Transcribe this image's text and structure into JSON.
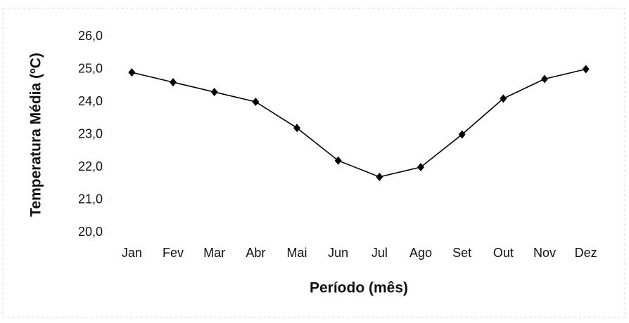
{
  "chart_data": {
    "type": "line",
    "y_label": "Temperatura Média (ºC)",
    "x_label": "Período (mês)",
    "categories": [
      "Jan",
      "Fev",
      "Mar",
      "Abr",
      "Mai",
      "Jun",
      "Jul",
      "Ago",
      "Set",
      "Out",
      "Nov",
      "Dez"
    ],
    "values": [
      24.9,
      24.6,
      24.3,
      24.0,
      23.2,
      22.2,
      21.7,
      22.0,
      23.0,
      24.1,
      24.7,
      25.0
    ],
    "color": "#000000",
    "ylim": [
      20,
      26
    ],
    "yticks": [
      {
        "value": 20,
        "label": "20,0"
      },
      {
        "value": 21,
        "label": "21,0"
      },
      {
        "value": 22,
        "label": "22,0"
      },
      {
        "value": 23,
        "label": "23,0"
      },
      {
        "value": 24,
        "label": "24,0"
      },
      {
        "value": 25,
        "label": "25,0"
      },
      {
        "value": 26,
        "label": "26,0"
      }
    ]
  }
}
